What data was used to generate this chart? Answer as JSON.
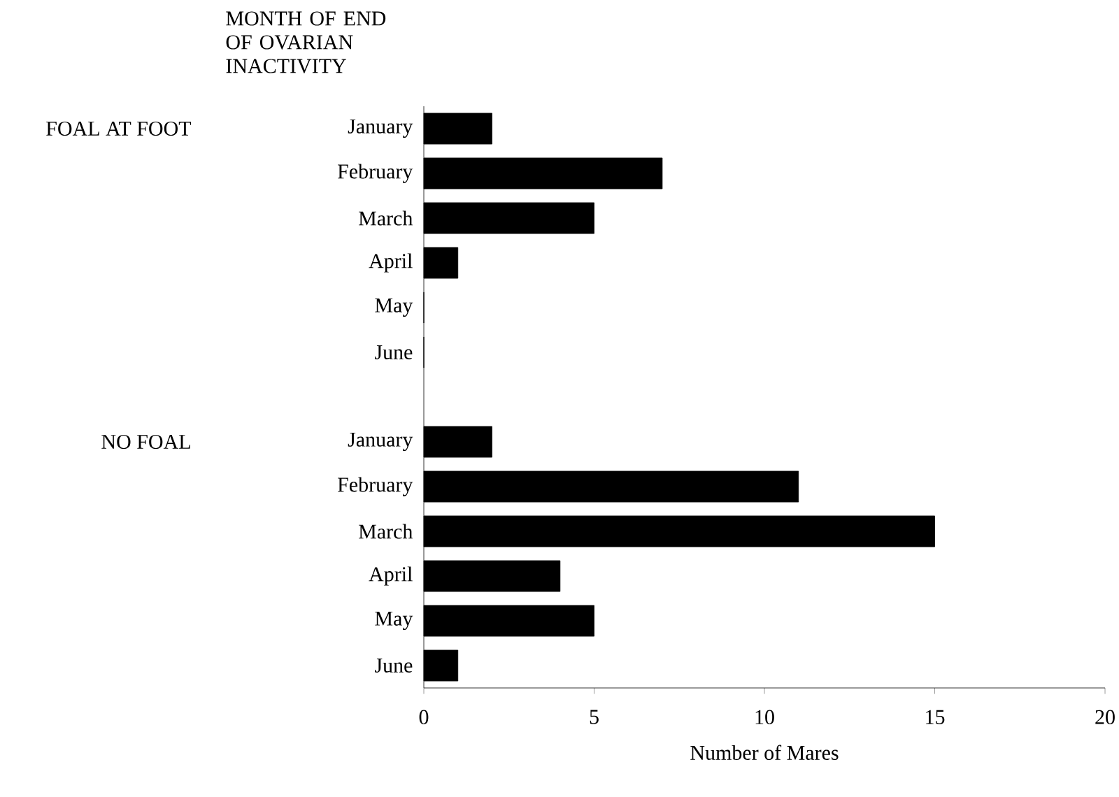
{
  "chart_data": {
    "type": "bar",
    "orientation": "horizontal",
    "ylabel": "MONTH OF END OF OVARIAN INACTIVITY",
    "xlabel": "Number of Mares",
    "categories": [
      "January",
      "February",
      "March",
      "April",
      "May",
      "June",
      null,
      "January",
      "February",
      "March",
      "April",
      "May",
      "June"
    ],
    "values": [
      2,
      7,
      5,
      1,
      0,
      0,
      null,
      2,
      11,
      15,
      4,
      5,
      1
    ],
    "color": "#000000",
    "xlim": [
      0,
      20
    ],
    "xticks": [
      0,
      5,
      10,
      15,
      20
    ],
    "annotations": [
      "FOAL AT FOOT",
      "NO FOAL"
    ],
    "grid": false
  }
}
